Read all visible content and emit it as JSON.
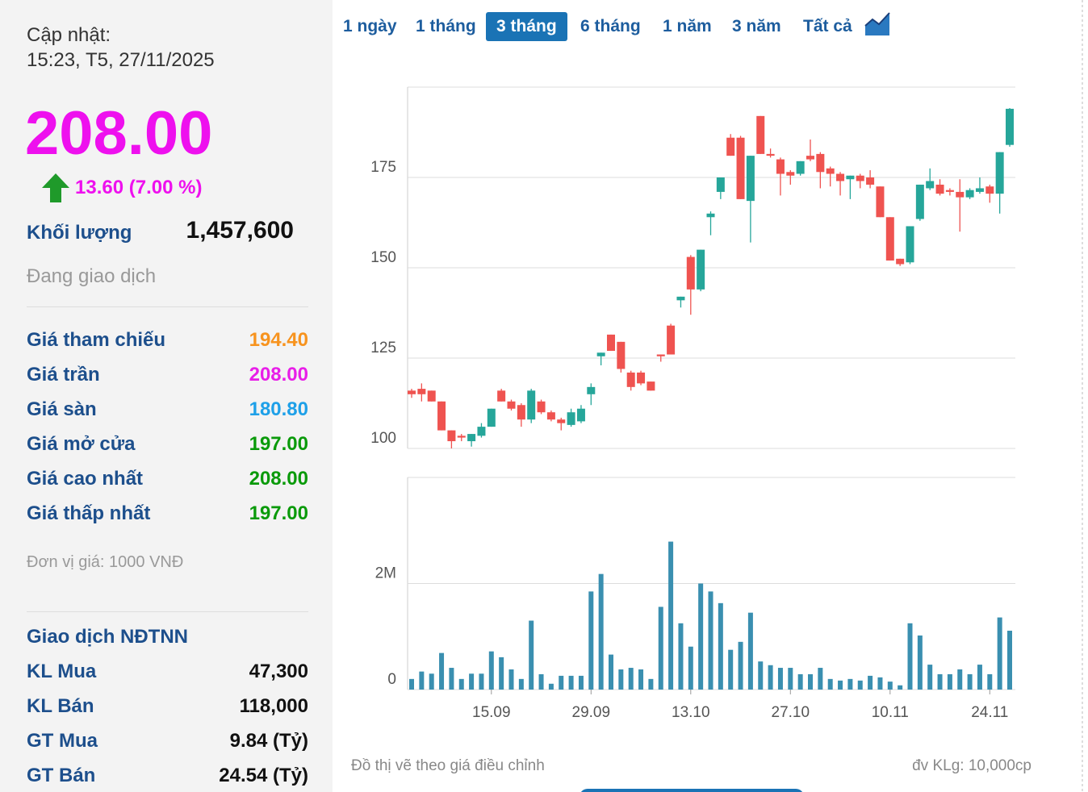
{
  "sidebar": {
    "update_label": "Cập nhật:",
    "update_time": "15:23, T5, 27/11/2025",
    "price": "208.00",
    "change": "13.60 (7.00 %)",
    "volume_label": "Khối lượng",
    "volume": "1,457,600",
    "status": "Đang giao dịch",
    "prices": [
      {
        "label": "Giá tham chiếu",
        "value": "194.40",
        "color": "#f7931e"
      },
      {
        "label": "Giá trần",
        "value": "208.00",
        "color": "#e81ee8"
      },
      {
        "label": "Giá sàn",
        "value": "180.80",
        "color": "#1ea0e8"
      },
      {
        "label": "Giá mở cửa",
        "value": "197.00",
        "color": "#0a9a0a"
      },
      {
        "label": "Giá cao nhất",
        "value": "208.00",
        "color": "#0a9a0a"
      },
      {
        "label": "Giá thấp nhất",
        "value": "197.00",
        "color": "#0a9a0a"
      }
    ],
    "unit_note": "Đơn vị giá: 1000 VNĐ",
    "foreign_title": "Giao dịch NĐTNN",
    "foreign": [
      {
        "label": "KL Mua",
        "value": "47,300"
      },
      {
        "label": "KL Bán",
        "value": "118,000"
      },
      {
        "label": "GT Mua",
        "value": "9.84 (Tỷ)"
      },
      {
        "label": "GT Bán",
        "value": "24.54 (Tỷ)"
      }
    ]
  },
  "tabs": {
    "items": [
      "1 ngày",
      "1 tháng",
      "3 tháng",
      "6 tháng",
      "1 năm",
      "3 năm",
      "Tất cả"
    ],
    "active": 2
  },
  "chart_data": [
    {
      "type": "candlestick",
      "up_color": "#26a69a",
      "down_color": "#ef5350",
      "open": [
        116,
        116.5,
        116,
        113,
        105,
        103.5,
        102,
        103.5,
        106,
        116,
        113,
        112,
        108,
        113,
        110,
        108,
        106.5,
        107.5,
        115,
        125.5,
        131.5,
        129.5,
        121,
        121,
        118.5,
        126,
        134,
        141,
        153,
        144,
        164,
        171,
        186,
        186,
        168.5,
        192,
        181.5,
        180,
        176.5,
        176,
        181,
        181.5,
        177.5,
        176,
        174.5,
        175.5,
        175,
        172.5,
        164,
        152.5,
        151.5,
        163.5,
        172,
        173,
        171.5,
        171,
        169.5,
        171,
        172.5,
        170.5,
        184
      ],
      "high": [
        116.5,
        118,
        116,
        113,
        105,
        104,
        104,
        107,
        111,
        116.5,
        113.5,
        112.5,
        116.5,
        113.5,
        110.5,
        108.5,
        111,
        112,
        118,
        126.5,
        131.5,
        129.5,
        121.5,
        121.5,
        118.5,
        126,
        134.5,
        142,
        153.5,
        155,
        165.6,
        175,
        187,
        186.5,
        181,
        192,
        183,
        180.5,
        177,
        179.5,
        185.5,
        182,
        178,
        176.5,
        175.5,
        176,
        177,
        172.5,
        164,
        152.5,
        161.5,
        173,
        177.5,
        174.5,
        172,
        174.5,
        172,
        175,
        173,
        182,
        194.2
      ],
      "low": [
        114,
        113,
        113,
        105,
        100,
        102,
        100.5,
        103,
        106,
        113,
        110.5,
        106,
        107,
        109.5,
        107.5,
        105,
        106,
        107,
        112,
        123,
        127,
        121,
        116,
        117.5,
        116,
        124,
        126,
        139,
        137,
        143.5,
        159,
        169,
        181,
        169,
        157,
        181.5,
        180.5,
        170,
        173,
        175.5,
        179.5,
        172,
        172.5,
        170,
        169,
        172,
        172,
        164,
        152,
        150.5,
        151,
        163,
        171.5,
        170,
        170,
        160,
        169,
        170.5,
        168,
        165,
        183.5
      ],
      "close": [
        115,
        115,
        113,
        105,
        102,
        103,
        104,
        106,
        111,
        113,
        111,
        108,
        116,
        110,
        108,
        107,
        110,
        111,
        117,
        126.5,
        127,
        122,
        117,
        118,
        116,
        125.5,
        126,
        142,
        144,
        155,
        165,
        175,
        181,
        169,
        181,
        181.5,
        181,
        176,
        175.5,
        179.5,
        180,
        176.5,
        176,
        174,
        175.5,
        174,
        173,
        164,
        152,
        151,
        161.5,
        173,
        174,
        170.5,
        171,
        169.5,
        171.5,
        172,
        170.5,
        182,
        194
      ],
      "ylim": [
        100,
        200
      ],
      "yticks": [
        100,
        125,
        150,
        175
      ],
      "grid": true
    },
    {
      "type": "bar",
      "color": "#3a8fb0",
      "categories": [
        null,
        null,
        null,
        null,
        null,
        null,
        null,
        null,
        "15.09",
        null,
        null,
        null,
        null,
        null,
        null,
        null,
        null,
        null,
        "29.09",
        null,
        null,
        null,
        null,
        null,
        null,
        null,
        null,
        null,
        "13.10",
        null,
        null,
        null,
        null,
        null,
        null,
        null,
        null,
        null,
        "27.10",
        null,
        null,
        null,
        null,
        null,
        null,
        null,
        null,
        null,
        "10.11",
        null,
        null,
        null,
        null,
        null,
        null,
        null,
        null,
        null,
        "24.11",
        null,
        null
      ],
      "values": [
        200000,
        340000,
        300000,
        690000,
        410000,
        200000,
        300000,
        300000,
        720000,
        610000,
        380000,
        200000,
        1300000,
        290000,
        110000,
        260000,
        260000,
        260000,
        1850000,
        2180000,
        660000,
        380000,
        410000,
        380000,
        200000,
        1560000,
        2790000,
        1250000,
        810000,
        2000000,
        1850000,
        1630000,
        750000,
        900000,
        1450000,
        530000,
        460000,
        410000,
        410000,
        290000,
        290000,
        410000,
        200000,
        170000,
        200000,
        170000,
        260000,
        230000,
        150000,
        80000,
        1250000,
        1020000,
        470000,
        290000,
        290000,
        380000,
        290000,
        470000,
        290000,
        1360000,
        1110000
      ],
      "ylim": [
        0,
        4000000
      ],
      "yticks": [
        0,
        {
          "value": 2000000,
          "label": "2M"
        }
      ],
      "grid": true
    }
  ],
  "footer": {
    "note": "Đồ thị vẽ theo giá điều chỉnh",
    "unit": "đv KLg: 10,000cp"
  }
}
